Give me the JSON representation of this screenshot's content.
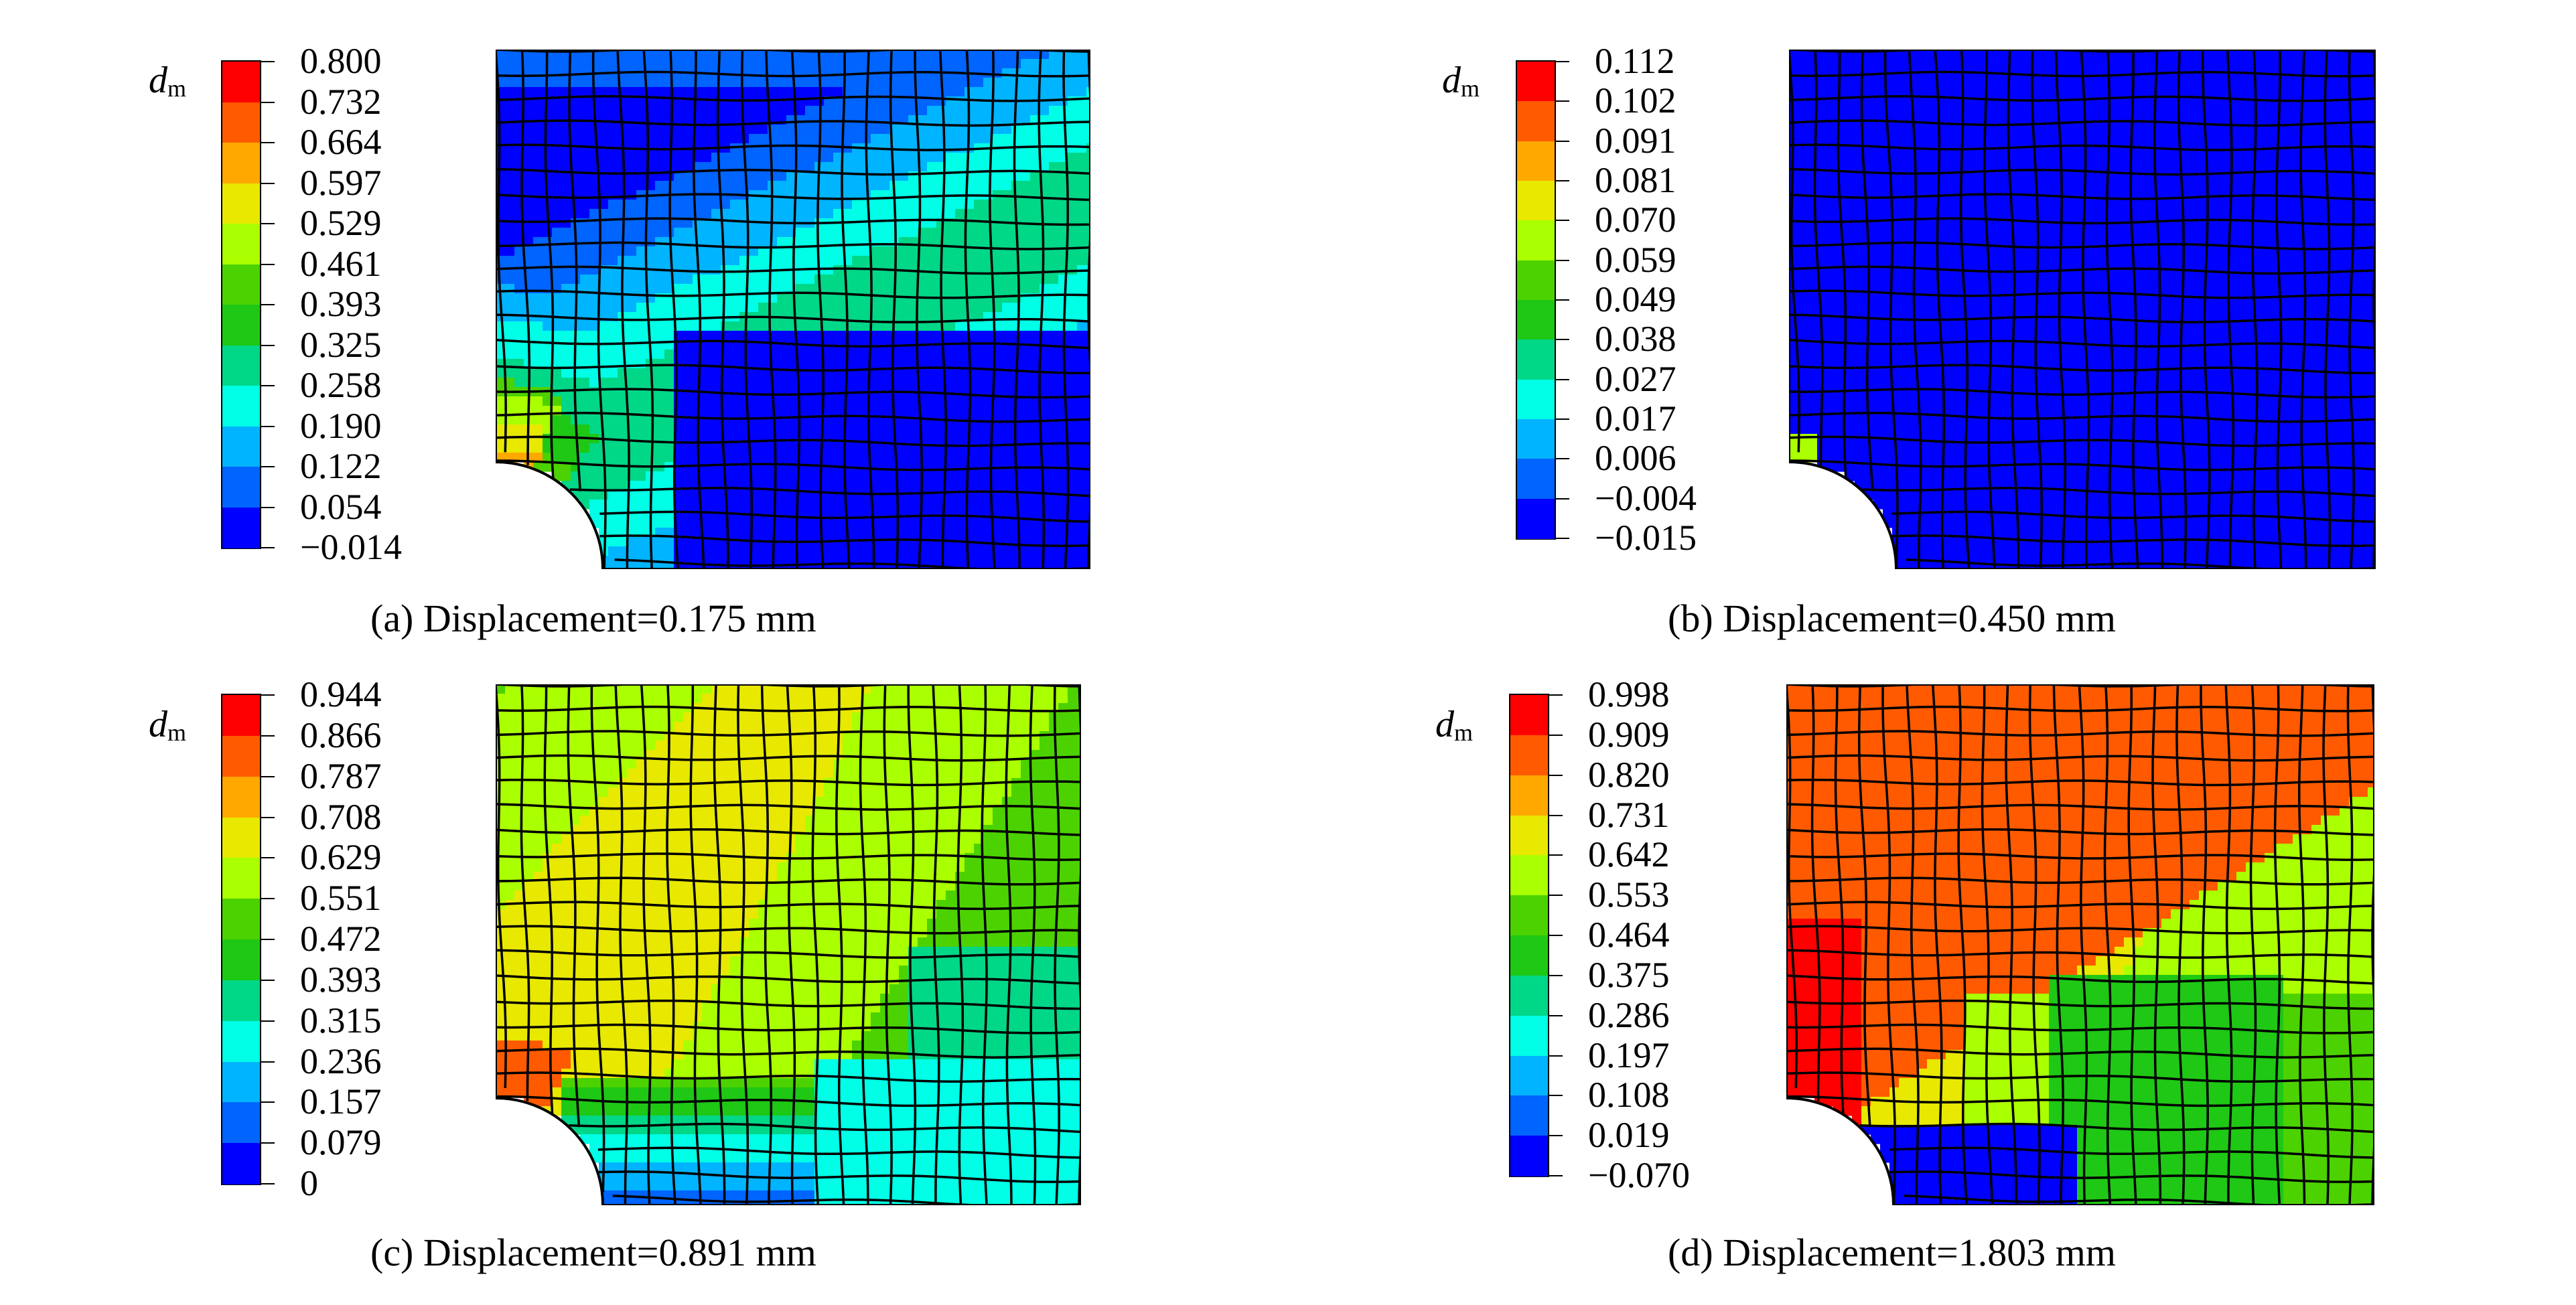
{
  "figure": {
    "panels": [
      {
        "id": "a",
        "caption": "(a) Displacement=0.175 mm",
        "legend_symbol": "d",
        "legend_subscript": "m",
        "legend_values": [
          "0.800",
          "0.732",
          "0.664",
          "0.597",
          "0.529",
          "0.461",
          "0.393",
          "0.325",
          "0.258",
          "0.190",
          "0.122",
          "0.054",
          "−0.014"
        ],
        "colors": [
          "#ff0000",
          "#ff5a00",
          "#ffa800",
          "#e8e800",
          "#aaff00",
          "#4cd200",
          "#1ec814",
          "#00d787",
          "#00ffe6",
          "#00b4ff",
          "#0064ff",
          "#0000ff"
        ]
      },
      {
        "id": "b",
        "caption": "(b) Displacement=0.450 mm",
        "legend_symbol": "d",
        "legend_subscript": "m",
        "legend_values": [
          "0.112",
          "0.102",
          "0.091",
          "0.081",
          "0.070",
          "0.059",
          "0.049",
          "0.038",
          "0.027",
          "0.017",
          "0.006",
          "−0.004",
          "−0.015"
        ],
        "colors": [
          "#ff0000",
          "#ff5a00",
          "#ffa800",
          "#e8e800",
          "#aaff00",
          "#4cd200",
          "#1ec814",
          "#00d787",
          "#00ffe6",
          "#00b4ff",
          "#0064ff",
          "#0000ff"
        ]
      },
      {
        "id": "c",
        "caption": "(c) Displacement=0.891 mm",
        "legend_symbol": "d",
        "legend_subscript": "m",
        "legend_values": [
          "0.944",
          "0.866",
          "0.787",
          "0.708",
          "0.629",
          "0.551",
          "0.472",
          "0.393",
          "0.315",
          "0.236",
          "0.157",
          "0.079",
          "0"
        ],
        "colors": [
          "#ff0000",
          "#ff5a00",
          "#ffa800",
          "#e8e800",
          "#aaff00",
          "#4cd200",
          "#1ec814",
          "#00d787",
          "#00ffe6",
          "#00b4ff",
          "#0064ff",
          "#0000ff"
        ]
      },
      {
        "id": "d",
        "caption": "(d) Displacement=1.803 mm",
        "legend_symbol": "d",
        "legend_subscript": "m",
        "legend_values": [
          "0.998",
          "0.909",
          "0.820",
          "0.731",
          "0.642",
          "0.553",
          "0.464",
          "0.375",
          "0.286",
          "0.197",
          "0.108",
          "0.019",
          "−0.070"
        ],
        "colors": [
          "#ff0000",
          "#ff5a00",
          "#ffa800",
          "#e8e800",
          "#aaff00",
          "#4cd200",
          "#1ec814",
          "#00d787",
          "#00ffe6",
          "#00b4ff",
          "#0064ff",
          "#0000ff"
        ]
      }
    ]
  }
}
